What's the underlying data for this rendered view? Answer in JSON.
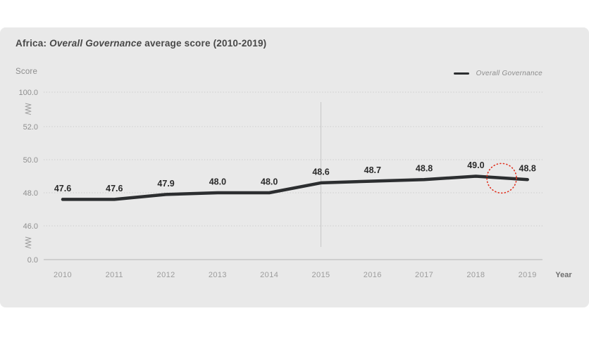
{
  "header": {
    "title_prefix": "Africa: ",
    "title_italic": "Overall Governance",
    "title_suffix": " average score (2010-2019)"
  },
  "axes": {
    "y_title": "Score",
    "x_title": "Year"
  },
  "legend": {
    "items": [
      {
        "label": "Overall Governance",
        "color": "#2c2e30"
      }
    ]
  },
  "colors": {
    "card_bg": "#e9e9e9",
    "line": "#2c2e30",
    "gridline": "#c9c9c9",
    "axis_line": "#b3b3b3",
    "reference_line": "#c7c7c7",
    "tick_text": "#8f8f8f",
    "year_text": "#9c9c9c",
    "year_title_text": "#6e6e6e",
    "data_label_text": "#2b2b2b",
    "break_mark": "#9e9e9e",
    "highlight_circle": "#e0301e"
  },
  "chart_data": {
    "type": "line",
    "title": "Africa: Overall Governance average score (2010-2019)",
    "xlabel": "Year",
    "ylabel": "Score",
    "x": [
      "2010",
      "2011",
      "2012",
      "2013",
      "2014",
      "2015",
      "2016",
      "2017",
      "2018",
      "2019"
    ],
    "series": [
      {
        "name": "Overall Governance",
        "values": [
          47.6,
          47.6,
          47.9,
          48.0,
          48.0,
          48.6,
          48.7,
          48.8,
          49.0,
          48.8
        ]
      }
    ],
    "data_labels": [
      "47.6",
      "47.6",
      "47.9",
      "48.0",
      "48.0",
      "48.6",
      "48.7",
      "48.8",
      "49.0",
      "48.8"
    ],
    "y_ticks": [
      "100.0",
      "52.0",
      "50.0",
      "48.0",
      "46.0",
      "0.0"
    ],
    "y_tick_values": [
      100,
      52,
      50,
      48,
      46,
      0
    ],
    "axis_breaks_after_tick_index": [
      0,
      4
    ],
    "grid": "horizontal dotted",
    "legend_position": "top-right",
    "annotations": {
      "vertical_reference_line_at_x": "2015",
      "highlight_circle": {
        "between": [
          "2018",
          "2019"
        ],
        "style": "dotted",
        "color": "#e0301e"
      }
    }
  }
}
